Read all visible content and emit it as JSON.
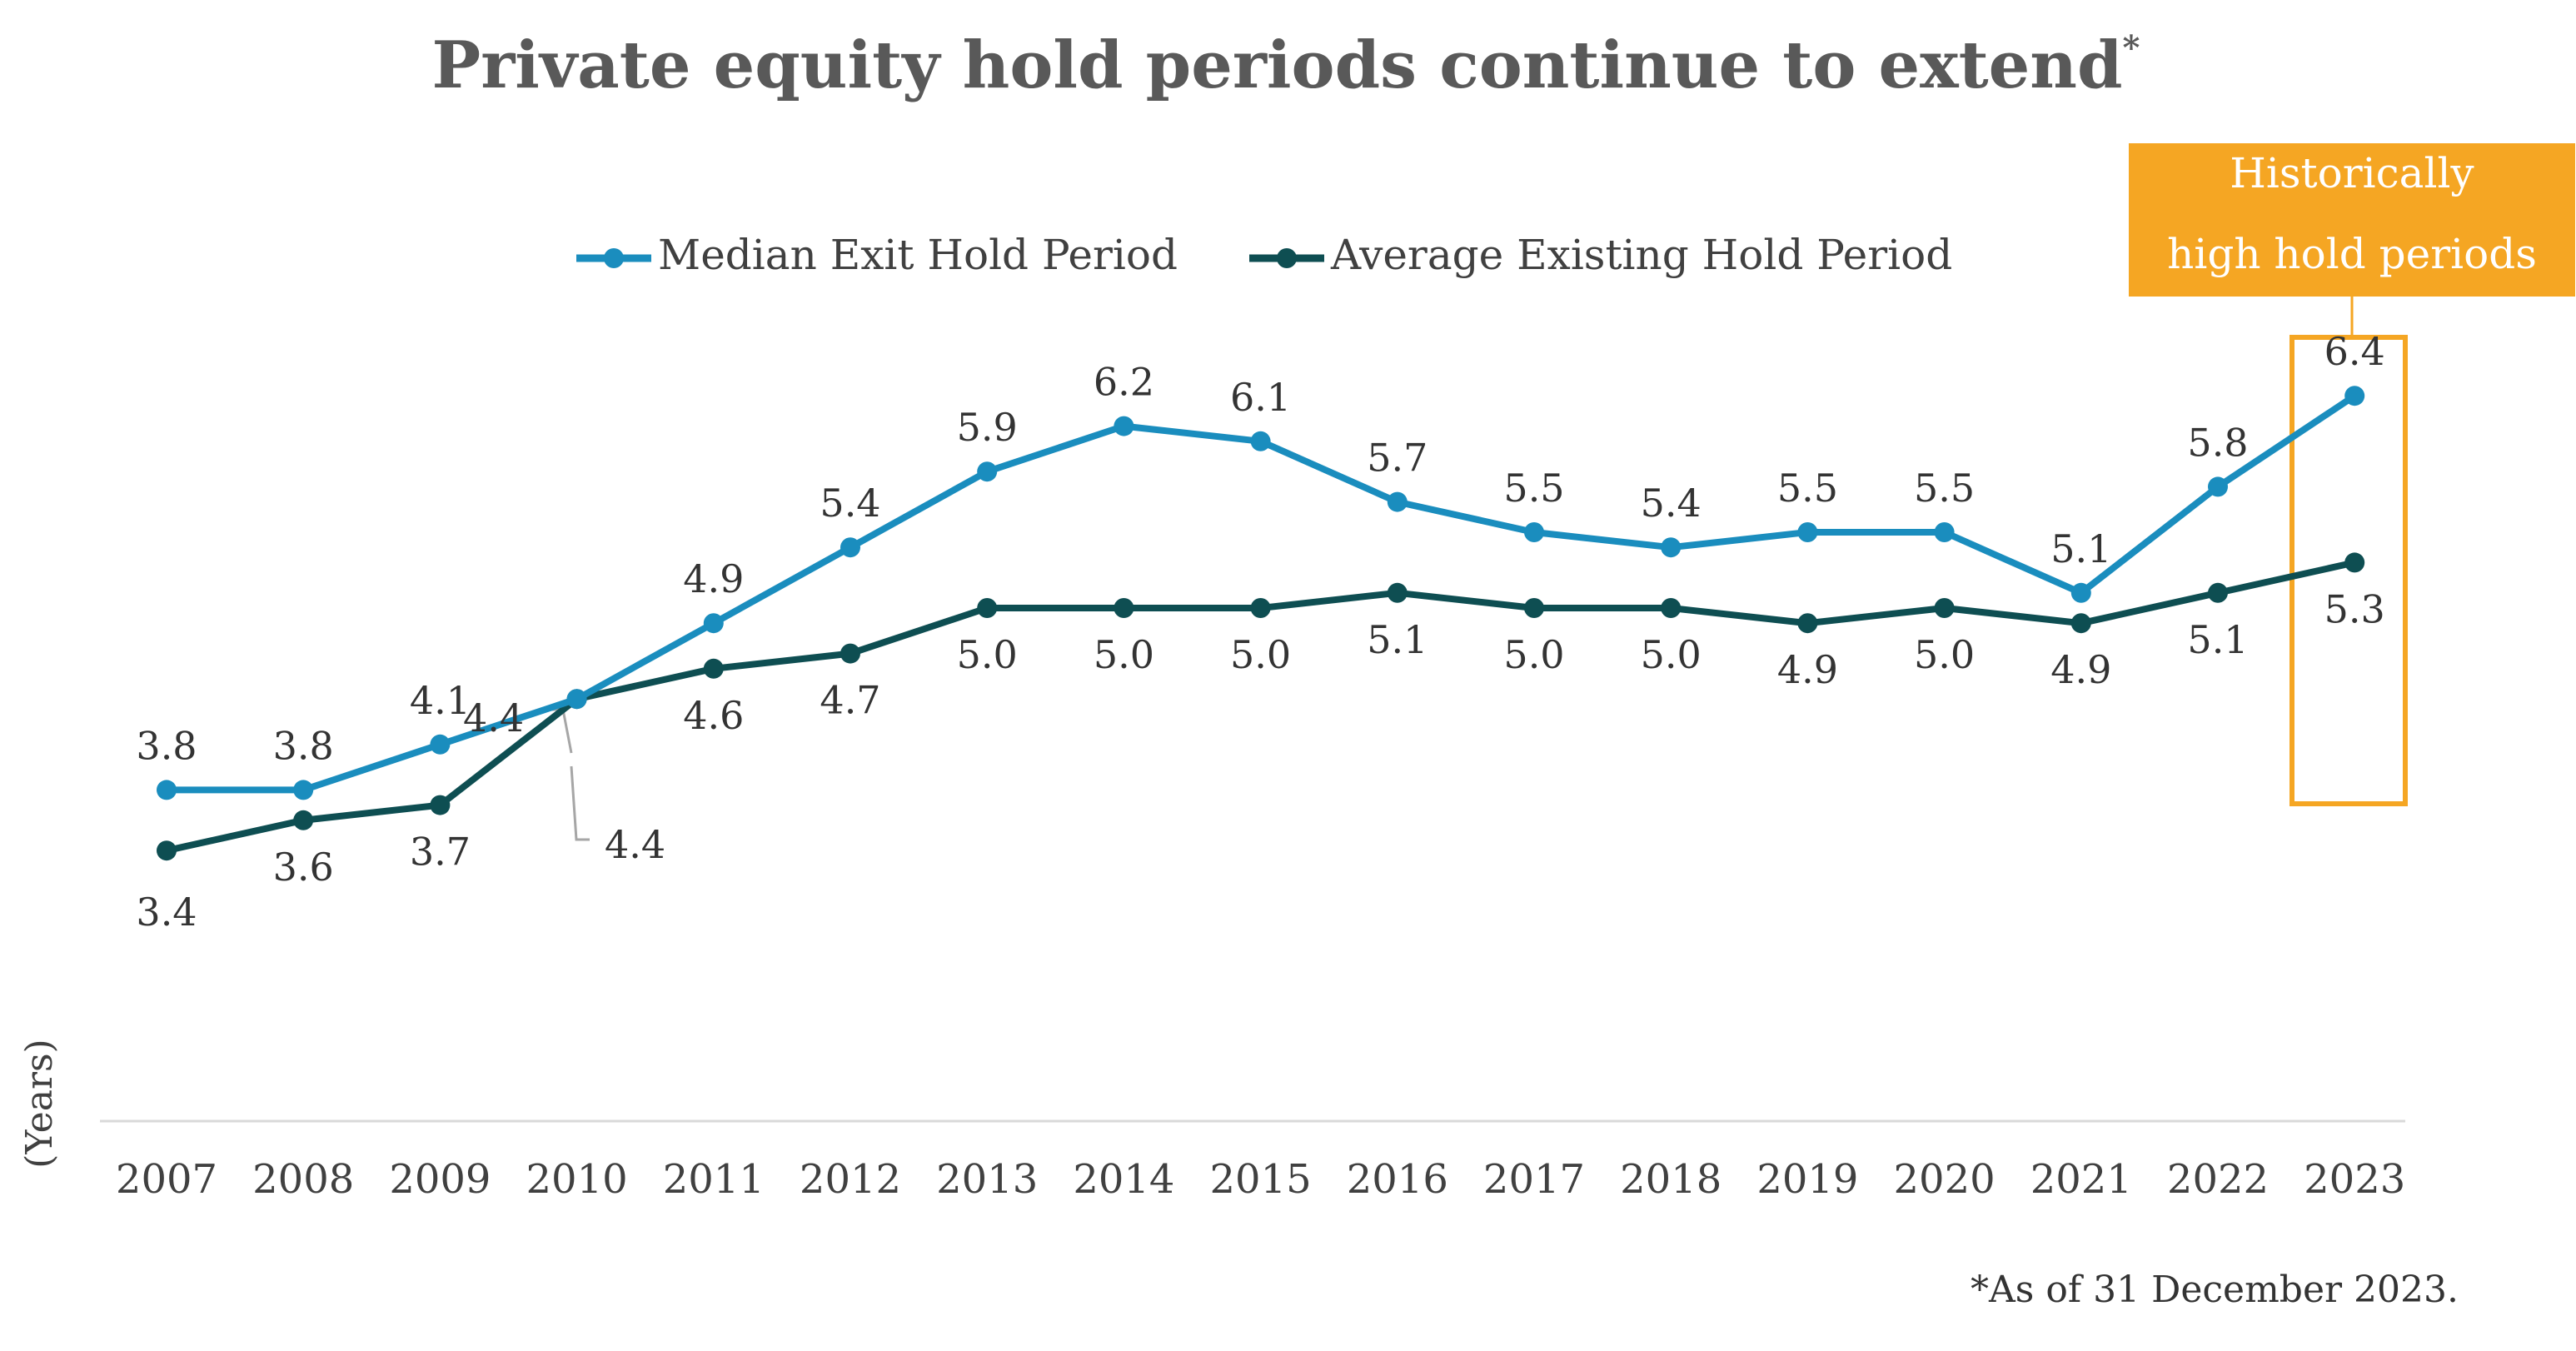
{
  "chart_data": {
    "type": "line",
    "title": "Private equity hold periods continue to extend",
    "title_marker": "*",
    "ylabel": "(Years)",
    "xlabel": "",
    "ylim": [
      0,
      7
    ],
    "grid": false,
    "legend_position": "top-center",
    "categories": [
      "2007",
      "2008",
      "2009",
      "2010",
      "2011",
      "2012",
      "2013",
      "2014",
      "2015",
      "2016",
      "2017",
      "2018",
      "2019",
      "2020",
      "2021",
      "2022",
      "2023"
    ],
    "series": [
      {
        "name": "Median Exit Hold Period",
        "color": "#1A8DBE",
        "values": [
          3.8,
          3.8,
          4.1,
          4.4,
          4.9,
          5.4,
          5.9,
          6.2,
          6.1,
          5.7,
          5.5,
          5.4,
          5.5,
          5.5,
          5.1,
          5.8,
          6.4
        ],
        "labels": [
          "3.8",
          "3.8",
          "4.1",
          "4.4",
          "4.9",
          "5.4",
          "5.9",
          "6.2",
          "6.1",
          "5.7",
          "5.5",
          "5.4",
          "5.5",
          "5.5",
          "5.1",
          "5.8",
          "6.4"
        ]
      },
      {
        "name": "Average Existing Hold Period",
        "color": "#0E4E52",
        "values": [
          3.4,
          3.6,
          3.7,
          4.4,
          4.6,
          4.7,
          5.0,
          5.0,
          5.0,
          5.1,
          5.0,
          5.0,
          4.9,
          5.0,
          4.9,
          5.1,
          5.3
        ],
        "labels": [
          "3.4",
          "3.6",
          "3.7",
          "4.4",
          "4.6",
          "4.7",
          "5.0",
          "5.0",
          "5.0",
          "5.1",
          "5.0",
          "5.0",
          "4.9",
          "5.0",
          "4.9",
          "5.1",
          "5.3"
        ]
      }
    ],
    "callout": {
      "text_line1": "Historically",
      "text_line2": "high hold periods",
      "color": "#F5A623",
      "highlight_category": "2023"
    },
    "footnote": "*As of 31 December 2023."
  }
}
